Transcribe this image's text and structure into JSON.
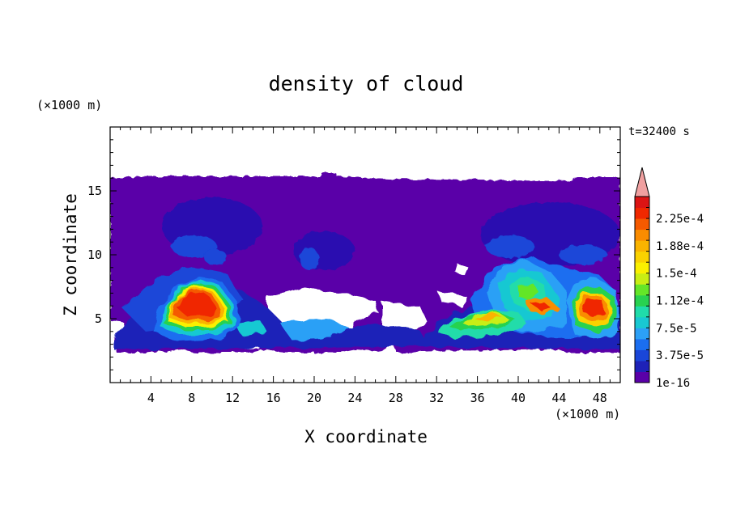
{
  "chart_data": {
    "type": "heatmap",
    "title": "density of cloud",
    "time_label": "t=32400 s",
    "xlabel": "X coordinate",
    "ylabel": "Z coordinate",
    "x_unit": "(×1000 m)",
    "y_unit": "(×1000 m)",
    "xlim": [
      0,
      50
    ],
    "ylim": [
      0,
      20
    ],
    "x_ticks": [
      "4",
      "8",
      "12",
      "16",
      "20",
      "24",
      "28",
      "32",
      "36",
      "40",
      "44",
      "48"
    ],
    "y_ticks": [
      "5",
      "10",
      "15"
    ],
    "colorbar": {
      "labels": [
        "2.25e-4",
        "1.88e-4",
        "1.5e-4",
        "1.12e-4",
        "7.5e-5",
        "3.75e-5",
        "1e-16"
      ],
      "colors": [
        "#5a00a8",
        "#1e22b8",
        "#1a46d8",
        "#1b6ef0",
        "#2ca0f6",
        "#19c8d2",
        "#20dcaa",
        "#28d250",
        "#64e628",
        "#c8ee14",
        "#faf000",
        "#fad200",
        "#fab400",
        "#fa8c00",
        "#f55a00",
        "#f02800",
        "#dc1414"
      ],
      "extend_color": "#f0a0a0"
    },
    "features": [
      {
        "name": "cloud domain",
        "x": [
          1.5,
          50
        ],
        "z": [
          2.5,
          16
        ],
        "level": 0
      },
      {
        "name": "anvil left",
        "cx": 10,
        "cz": 12.2,
        "rx": 5,
        "rz": 2.8,
        "level": 1
      },
      {
        "name": "anvil right",
        "cx": 41,
        "cz": 11.5,
        "rx": 6.8,
        "rz": 3.2,
        "level": 1
      },
      {
        "name": "core left",
        "cx": 8.5,
        "cz": 5.8,
        "max": "2.25e-4"
      },
      {
        "name": "core right",
        "cx": 40,
        "cz": 6.3,
        "max": "1.5e-4"
      },
      {
        "name": "core far right",
        "cx": 47,
        "cz": 5.7,
        "max": "2.25e-4"
      }
    ]
  }
}
